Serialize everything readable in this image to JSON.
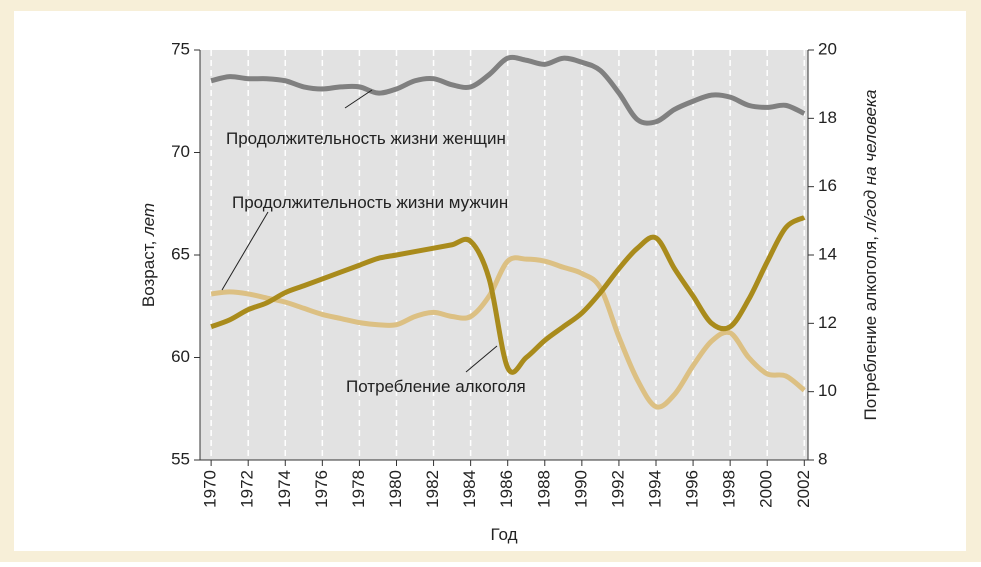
{
  "chart_data": {
    "type": "line",
    "x_label": "Год",
    "y_label": {
      "text": "Возраст,",
      "unit": "лет"
    },
    "y2_label": {
      "text": "Потребление алкоголя,",
      "unit": "л/год на человека"
    },
    "x": [
      1970,
      1971,
      1972,
      1973,
      1974,
      1975,
      1976,
      1977,
      1978,
      1979,
      1980,
      1981,
      1982,
      1983,
      1984,
      1985,
      1986,
      1987,
      1988,
      1989,
      1990,
      1991,
      1992,
      1993,
      1994,
      1995,
      1996,
      1997,
      1998,
      1999,
      2000,
      2001,
      2002
    ],
    "xlim": [
      1969.4,
      2002.2
    ],
    "xticks": [
      1970,
      1972,
      1974,
      1976,
      1978,
      1980,
      1982,
      1984,
      1986,
      1988,
      1990,
      1992,
      1994,
      1996,
      1998,
      2000,
      2002
    ],
    "ylim": [
      55,
      75
    ],
    "yticks": [
      55,
      60,
      65,
      70,
      75
    ],
    "y2lim": [
      8,
      20
    ],
    "y2ticks": [
      8,
      10,
      12,
      14,
      16,
      18,
      20
    ],
    "grid": true,
    "series": [
      {
        "name": "Продолжительность жизни женщин",
        "color": "#808080",
        "values": [
          73.5,
          73.7,
          73.6,
          73.6,
          73.5,
          73.2,
          73.1,
          73.2,
          73.2,
          72.9,
          73.1,
          73.5,
          73.6,
          73.3,
          73.2,
          73.8,
          74.6,
          74.5,
          74.3,
          74.6,
          74.4,
          74.0,
          72.9,
          71.6,
          71.5,
          72.1,
          72.5,
          72.8,
          72.7,
          72.3,
          72.2,
          72.3,
          71.9
        ]
      },
      {
        "name": "Продолжительность жизни мужчин",
        "color": "#dcc083",
        "values": [
          63.1,
          63.2,
          63.1,
          62.9,
          62.7,
          62.4,
          62.1,
          61.9,
          61.7,
          61.6,
          61.6,
          62.0,
          62.2,
          62.0,
          62.0,
          63.0,
          64.7,
          64.8,
          64.7,
          64.4,
          64.1,
          63.4,
          61.0,
          58.9,
          57.6,
          58.2,
          59.6,
          60.8,
          61.2,
          60.0,
          59.2,
          59.1,
          58.4
        ]
      },
      {
        "name": "Потребление алкоголя",
        "color": "#a98b1c",
        "axis": "y2",
        "values": [
          11.9,
          12.1,
          12.4,
          12.6,
          12.9,
          13.1,
          13.3,
          13.5,
          13.7,
          13.9,
          14.0,
          14.1,
          14.2,
          14.3,
          14.4,
          13.3,
          10.7,
          11.0,
          11.5,
          11.9,
          12.3,
          12.9,
          13.6,
          14.2,
          14.5,
          13.6,
          12.8,
          12.0,
          11.9,
          12.7,
          13.8,
          14.8,
          15.1
        ]
      }
    ]
  }
}
